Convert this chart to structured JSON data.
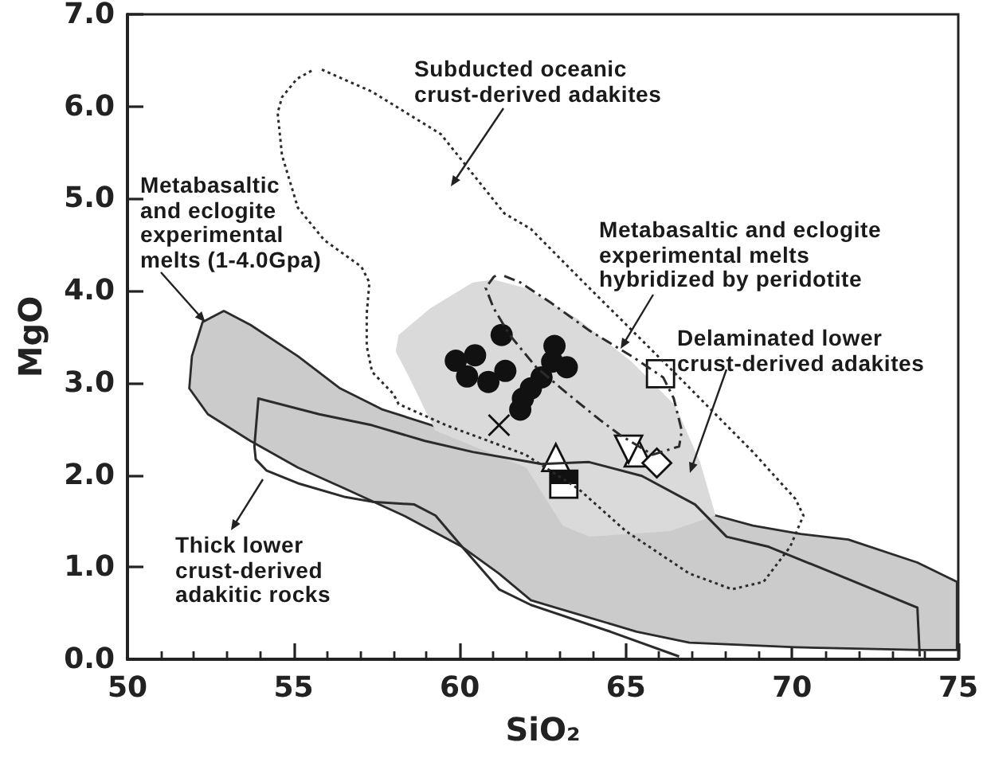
{
  "chart_data": {
    "type": "scatter",
    "xlabel": "SiO₂",
    "ylabel": "MgO",
    "xlim": [
      50,
      75
    ],
    "ylim": [
      0,
      7
    ],
    "xticks": [
      50,
      {
        "value": 51,
        "label": null
      },
      {
        "value": 52,
        "label": null
      },
      {
        "value": 53,
        "label": null
      },
      {
        "value": 54,
        "label": null
      },
      55,
      {
        "value": 56,
        "label": null
      },
      {
        "value": 57,
        "label": null
      },
      {
        "value": 58,
        "label": null
      },
      {
        "value": 59,
        "label": null
      },
      60,
      {
        "value": 61,
        "label": null
      },
      {
        "value": 62,
        "label": null
      },
      {
        "value": 63,
        "label": null
      },
      {
        "value": 64,
        "label": null
      },
      65,
      {
        "value": 66,
        "label": null
      },
      {
        "value": 67,
        "label": null
      },
      {
        "value": 68,
        "label": null
      },
      {
        "value": 69,
        "label": null
      },
      70,
      {
        "value": 71,
        "label": null
      },
      {
        "value": 72,
        "label": null
      },
      {
        "value": 73,
        "label": null
      },
      {
        "value": 74,
        "label": null
      },
      75
    ],
    "yticks": [
      {
        "value": 0,
        "label": "0.0"
      },
      {
        "value": 1,
        "label": "1.0"
      },
      {
        "value": 2,
        "label": "2.0"
      },
      {
        "value": 3,
        "label": "3.0"
      },
      {
        "value": 4,
        "label": "4.0"
      },
      {
        "value": 5,
        "label": "5.0"
      },
      {
        "value": 6,
        "label": "6.0"
      },
      {
        "value": 7,
        "label": "7.0"
      }
    ],
    "annotations": [
      "Subducted oceanic\ncrust-derived adakites",
      {
        "text": "Metabasaltic\nand eclogite\nexperimental\nmelts (1-4.0Gpa)",
        "x": 52.34,
        "y": 3.66
      },
      {
        "text": "Metabasaltic and eclogite\nexperimental melts\nhybridized by peridotite",
        "x": 64.84,
        "y": 3.37
      },
      "Delaminated lower\ncrust-derived adakites",
      "Thick lower\ncrust-derived\nadakitic rocks"
    ],
    "series": [
      {
        "type": "area",
        "line_style": "solid",
        "color": "#cbcbcb",
        "x": [
          52.9,
          53.7,
          55.13,
          56.4,
          57.68,
          67.71,
          68.82,
          70.26,
          71.69,
          73.77,
          74.96,
          74.96,
          73.92,
          70.1,
          66.91,
          65.32,
          63.73,
          62.14,
          61.18,
          60.07,
          58.31,
          56.56,
          55.13,
          53.7,
          52.42,
          51.86,
          51.94,
          52.26
        ],
        "values": [
          3.78,
          3.63,
          3.29,
          2.94,
          2.71,
          1.56,
          1.45,
          1.36,
          1.3,
          1.05,
          0.84,
          0.1,
          0.1,
          0.13,
          0.18,
          0.3,
          0.47,
          0.64,
          0.93,
          1.22,
          1.56,
          1.85,
          2.08,
          2.37,
          2.66,
          2.94,
          3.29,
          3.66
        ]
      },
      {
        "type": "area",
        "color": "#dadada",
        "x": [
          61.02,
          61.98,
          63.57,
          65.17,
          66.44,
          66.6,
          67.23,
          67.7,
          66.3,
          63.9,
          63.1,
          62.0,
          59.27,
          58.95,
          58.48,
          58.07,
          58.16,
          59.11,
          60.39
        ],
        "values": [
          4.12,
          4.03,
          3.69,
          3.23,
          2.77,
          2.66,
          2.14,
          1.56,
          1.39,
          1.33,
          1.45,
          2.08,
          2.48,
          2.71,
          3.06,
          3.34,
          3.52,
          3.81,
          4.09
        ]
      },
      {
        "type": "line",
        "line_style": "solid",
        "color": "#2b2b2b",
        "x": [
          66.6,
          64.53,
          62.14,
          61.18,
          60.07,
          59.27,
          58.63,
          57.36,
          56.56,
          55.13,
          54.18,
          53.86,
          53.82,
          53.94,
          55.77,
          57.36,
          58.95,
          60.39,
          62.46,
          63.89,
          65.48,
          67.08,
          68.03,
          69.3,
          71.69,
          73.77,
          73.84
        ],
        "values": [
          0.03,
          0.3,
          0.59,
          0.76,
          1.22,
          1.56,
          1.68,
          1.71,
          1.76,
          1.91,
          2.05,
          2.17,
          2.31,
          2.83,
          2.66,
          2.54,
          2.37,
          2.25,
          2.12,
          2.14,
          1.99,
          1.68,
          1.33,
          1.22,
          0.87,
          0.56,
          0.03
        ]
      },
      {
        "type": "line",
        "line_style": "dotted",
        "color": "#2b2b2b",
        "x": [
          55.85,
          57.36,
          59.43,
          61.34,
          62.14,
          63.73,
          65.32,
          66.6,
          68.82,
          70.1,
          70.34,
          69.94,
          69.14,
          68.19,
          66.91,
          65.0,
          63.57,
          61.98,
          59.59,
          58.16,
          58.0,
          57.36,
          57.2,
          57.2,
          57.28,
          57.04,
          55.92,
          55.13,
          54.65,
          54.52,
          54.65,
          55.1,
          55.55
        ],
        "values": [
          6.4,
          6.16,
          5.7,
          4.84,
          4.67,
          4.09,
          3.52,
          3.06,
          2.25,
          1.74,
          1.56,
          1.22,
          0.84,
          0.76,
          0.93,
          1.39,
          1.85,
          2.22,
          2.54,
          2.77,
          2.88,
          3.12,
          3.4,
          3.75,
          4.09,
          4.26,
          4.55,
          4.9,
          5.47,
          5.93,
          6.1,
          6.3,
          6.39
        ]
      },
      {
        "type": "line",
        "line_style": "dashdot",
        "color": "#2b2b2b",
        "x": [
          61.34,
          61.82,
          62.78,
          63.89,
          65.17,
          66.12,
          66.44,
          66.68,
          66.6,
          65.8,
          64.84,
          64.21,
          63.25,
          62.3,
          61.5,
          61.02,
          60.78,
          61.02,
          61.12
        ],
        "values": [
          4.16,
          4.09,
          3.86,
          3.57,
          3.29,
          3.06,
          2.83,
          2.48,
          2.31,
          2.22,
          2.43,
          2.6,
          2.88,
          3.17,
          3.52,
          3.81,
          4.03,
          4.15,
          4.17
        ]
      },
      {
        "marker": "circle",
        "color": "#111111",
        "x": [
          61.26,
          59.88,
          60.46,
          60.22,
          60.86,
          61.37,
          62.85,
          63.22,
          62.78,
          62.46,
          62.14,
          61.9,
          61.82
        ],
        "values": [
          3.52,
          3.24,
          3.3,
          3.07,
          3.01,
          3.13,
          3.4,
          3.17,
          3.23,
          3.06,
          2.94,
          2.83,
          2.71
        ]
      },
      {
        "type": "scatter",
        "marker": "cross",
        "color": "#111111",
        "x": [
          61.18
        ],
        "values": [
          2.54
        ]
      },
      {
        "type": "scatter",
        "marker": "triangle",
        "color": "#111111",
        "x": [
          62.89,
          65.37
        ],
        "values": [
          2.19,
          2.24
        ]
      },
      {
        "type": "scatter",
        "marker": "triangle",
        "color": "#111111",
        "x": [
          65.08
        ],
        "values": [
          2.28
        ]
      },
      {
        "type": "scatter",
        "marker": "square",
        "color": "#111111",
        "x": [
          63.13
        ],
        "values": [
          1.9
        ]
      },
      {
        "type": "scatter",
        "marker": "square",
        "color": "#111111",
        "x": [
          66.04
        ],
        "values": [
          3.1
        ]
      },
      {
        "type": "scatter",
        "marker": "diamond",
        "color": "#111111",
        "x": [
          65.93
        ],
        "values": [
          2.13
        ]
      }
    ]
  }
}
